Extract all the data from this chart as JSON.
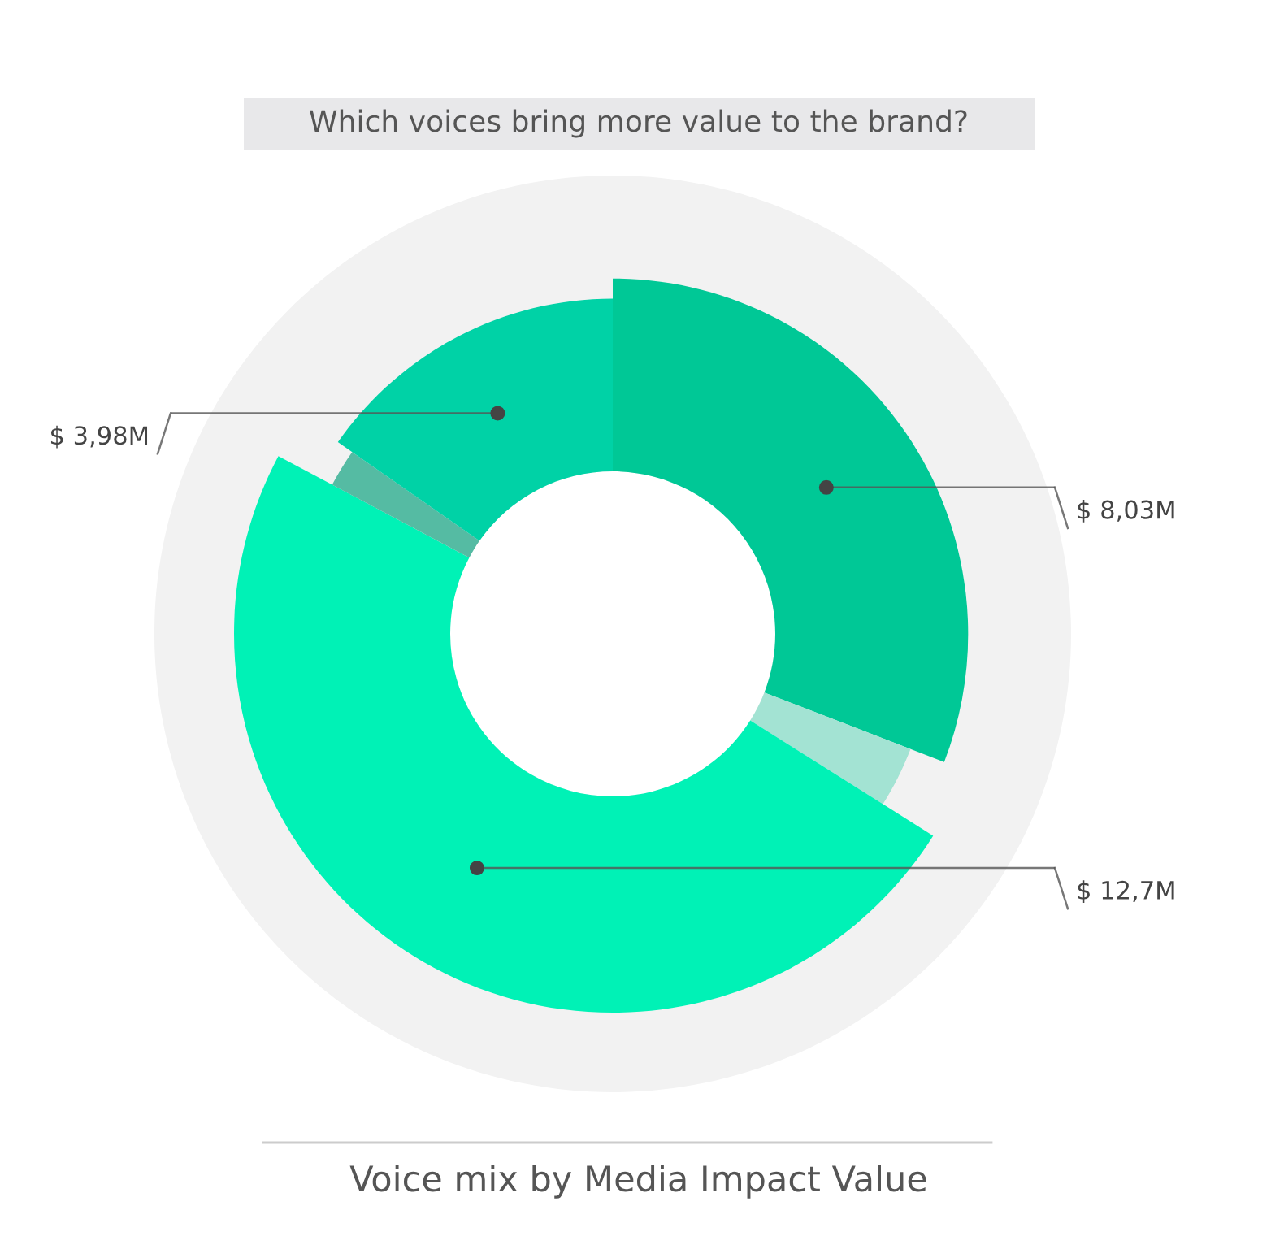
{
  "chart_data": {
    "type": "donut",
    "title": "Which voices bring more value to the brand?",
    "categories": [
      null,
      null,
      null,
      null,
      null
    ],
    "values": [
      8.03,
      0.8,
      12.7,
      0.5,
      3.98
    ],
    "colors": [
      "#00c896",
      "#a3e3d3",
      "#00f2b6",
      "#55bba3",
      "#00d2a6"
    ],
    "value_labels": [
      "$ 8,03M",
      null,
      "$ 12,7M",
      null,
      "$ 3,98M"
    ],
    "annotations": [
      "Voice mix by Media Impact Value"
    ]
  }
}
